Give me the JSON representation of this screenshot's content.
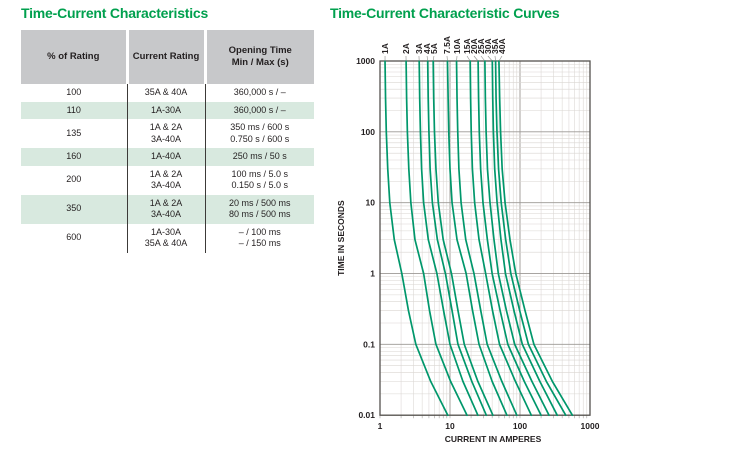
{
  "left_section": {
    "title": "Time-Current Characteristics",
    "table": {
      "headers": [
        {
          "lines": [
            "% of Rating"
          ]
        },
        {
          "lines": [
            "Current Rating"
          ]
        },
        {
          "lines": [
            "Opening Time",
            "Min / Max (s)"
          ]
        }
      ],
      "rows": [
        {
          "pct": "100",
          "rating_lines": [
            "35A & 40A"
          ],
          "time_lines": [
            "360,000 s / –"
          ],
          "highlight": false
        },
        {
          "pct": "110",
          "rating_lines": [
            "1A-30A"
          ],
          "time_lines": [
            "360,000 s / –"
          ],
          "highlight": true
        },
        {
          "pct": "135",
          "rating_lines": [
            "1A & 2A",
            "3A-40A"
          ],
          "time_lines": [
            "350 ms / 600 s",
            "0.750 s / 600 s"
          ],
          "highlight": false
        },
        {
          "pct": "160",
          "rating_lines": [
            "1A-40A"
          ],
          "time_lines": [
            "250 ms / 50 s"
          ],
          "highlight": true
        },
        {
          "pct": "200",
          "rating_lines": [
            "1A & 2A",
            "3A-40A"
          ],
          "time_lines": [
            "100 ms / 5.0 s",
            "0.150 s / 5.0 s"
          ],
          "highlight": false
        },
        {
          "pct": "350",
          "rating_lines": [
            "1A & 2A",
            "3A-40A"
          ],
          "time_lines": [
            "20 ms / 500 ms",
            "80 ms / 500 ms"
          ],
          "highlight": true
        },
        {
          "pct": "600",
          "rating_lines": [
            "1A-30A",
            "35A & 40A"
          ],
          "time_lines": [
            "– / 100 ms",
            "– / 150 ms"
          ],
          "highlight": false
        }
      ]
    }
  },
  "chart_data": {
    "type": "line",
    "title": "Time-Current Characteristic Curves",
    "xlabel": "CURRENT IN AMPERES",
    "ylabel": "TIME IN SECONDS",
    "xscale": "log",
    "yscale": "log",
    "xlim": [
      1,
      1000
    ],
    "ylim": [
      0.01,
      1000
    ],
    "grid": "log major and minor, both axes",
    "legend_position": "labels rotated above top axis",
    "x_ticks": [
      {
        "v": 1,
        "label": "1"
      },
      {
        "v": 10,
        "label": "10"
      },
      {
        "v": 100,
        "label": "100"
      },
      {
        "v": 1000,
        "label": "1000"
      }
    ],
    "y_ticks": [
      {
        "v": 1000,
        "label": "1000"
      },
      {
        "v": 100,
        "label": "100"
      },
      {
        "v": 10,
        "label": "10"
      },
      {
        "v": 1,
        "label": "1"
      },
      {
        "v": 0.1,
        "label": "0.1"
      },
      {
        "v": 0.01,
        "label": "0.01"
      }
    ],
    "colors": {
      "curve": "#00976b",
      "grid_minor": "#dad6d2",
      "grid_major": "#9b9894",
      "frame": "#55524e",
      "title_green": "#00a04e",
      "leader": "#8a8a86"
    },
    "series": [
      {
        "name": "1A",
        "label_at": 1.18,
        "points": [
          [
            1.18,
            1000
          ],
          [
            1.2,
            300
          ],
          [
            1.23,
            100
          ],
          [
            1.29,
            30
          ],
          [
            1.38,
            10
          ],
          [
            1.6,
            3
          ],
          [
            2.05,
            1
          ],
          [
            2.55,
            0.3
          ],
          [
            3.25,
            0.1
          ],
          [
            5.3,
            0.03
          ],
          [
            9.3,
            0.01
          ]
        ]
      },
      {
        "name": "2A",
        "label_at": 2.35,
        "points": [
          [
            2.36,
            1000
          ],
          [
            2.4,
            300
          ],
          [
            2.46,
            100
          ],
          [
            2.58,
            30
          ],
          [
            2.76,
            10
          ],
          [
            3.16,
            3
          ],
          [
            4.2,
            1
          ],
          [
            5.1,
            0.3
          ],
          [
            6.3,
            0.1
          ],
          [
            10.2,
            0.03
          ],
          [
            17.5,
            0.01
          ]
        ]
      },
      {
        "name": "3A",
        "label_at": 3.6,
        "points": [
          [
            3.63,
            1000
          ],
          [
            3.69,
            300
          ],
          [
            3.78,
            100
          ],
          [
            3.93,
            30
          ],
          [
            4.2,
            10
          ],
          [
            4.9,
            3
          ],
          [
            6.5,
            1
          ],
          [
            8.1,
            0.3
          ],
          [
            10.0,
            0.1
          ],
          [
            15.3,
            0.03
          ],
          [
            25,
            0.01
          ]
        ]
      },
      {
        "name": "4A",
        "label_at": 4.7,
        "points": [
          [
            4.8,
            1000
          ],
          [
            4.88,
            300
          ],
          [
            5.0,
            100
          ],
          [
            5.2,
            30
          ],
          [
            5.6,
            10
          ],
          [
            6.6,
            3
          ],
          [
            8.6,
            1
          ],
          [
            10.7,
            0.3
          ],
          [
            13.0,
            0.1
          ],
          [
            20.5,
            0.03
          ],
          [
            33,
            0.01
          ]
        ]
      },
      {
        "name": "5A",
        "label_at": 5.9,
        "points": [
          [
            5.75,
            1000
          ],
          [
            5.85,
            300
          ],
          [
            6.0,
            100
          ],
          [
            6.3,
            30
          ],
          [
            6.8,
            10
          ],
          [
            8.0,
            3
          ],
          [
            10.5,
            1
          ],
          [
            13.0,
            0.3
          ],
          [
            16.0,
            0.1
          ],
          [
            25.0,
            0.03
          ],
          [
            41,
            0.01
          ]
        ]
      },
      {
        "name": "7.5A",
        "label_at": 9.05,
        "points": [
          [
            9.2,
            1000
          ],
          [
            9.4,
            300
          ],
          [
            9.6,
            100
          ],
          [
            10.0,
            30
          ],
          [
            10.7,
            10
          ],
          [
            12.6,
            3
          ],
          [
            17.0,
            1
          ],
          [
            21.0,
            0.3
          ],
          [
            26.0,
            0.1
          ],
          [
            40.0,
            0.03
          ],
          [
            65,
            0.01
          ]
        ]
      },
      {
        "name": "10A",
        "label_at": 12.6,
        "points": [
          [
            12.4,
            1000
          ],
          [
            12.6,
            300
          ],
          [
            12.9,
            100
          ],
          [
            13.4,
            30
          ],
          [
            14.4,
            10
          ],
          [
            16.8,
            3
          ],
          [
            22.0,
            1
          ],
          [
            27.5,
            0.3
          ],
          [
            34.0,
            0.1
          ],
          [
            55.0,
            0.03
          ],
          [
            90,
            0.01
          ]
        ]
      },
      {
        "name": "15A",
        "label_at": 17.5,
        "points": [
          [
            19.4,
            1000
          ],
          [
            19.7,
            300
          ],
          [
            20.1,
            100
          ],
          [
            20.9,
            30
          ],
          [
            22.5,
            10
          ],
          [
            26.0,
            3
          ],
          [
            32.3,
            1
          ],
          [
            40.5,
            0.3
          ],
          [
            51.0,
            0.1
          ],
          [
            86.0,
            0.03
          ],
          [
            145,
            0.01
          ]
        ]
      },
      {
        "name": "20A",
        "label_at": 22.0,
        "points": [
          [
            25.2,
            1000
          ],
          [
            25.6,
            300
          ],
          [
            26.2,
            100
          ],
          [
            27.4,
            30
          ],
          [
            29.6,
            10
          ],
          [
            34.2,
            3
          ],
          [
            40.0,
            1
          ],
          [
            52.0,
            0.3
          ],
          [
            67.0,
            0.1
          ],
          [
            115.0,
            0.03
          ],
          [
            200,
            0.01
          ]
        ]
      },
      {
        "name": "25A",
        "label_at": 27.7,
        "points": [
          [
            31.5,
            1000
          ],
          [
            32.0,
            300
          ],
          [
            32.8,
            100
          ],
          [
            34.3,
            30
          ],
          [
            37.3,
            10
          ],
          [
            42.5,
            3
          ],
          [
            49.0,
            1
          ],
          [
            64.0,
            0.3
          ],
          [
            84.0,
            0.1
          ],
          [
            148.0,
            0.03
          ],
          [
            260,
            0.01
          ]
        ]
      },
      {
        "name": "30A",
        "label_at": 34.8,
        "points": [
          [
            40.2,
            1000
          ],
          [
            40.8,
            300
          ],
          [
            41.7,
            100
          ],
          [
            43.5,
            30
          ],
          [
            47.1,
            10
          ],
          [
            53.5,
            3
          ],
          [
            62.0,
            1
          ],
          [
            82.0,
            0.3
          ],
          [
            108.0,
            0.1
          ],
          [
            192.0,
            0.03
          ],
          [
            340,
            0.01
          ]
        ]
      },
      {
        "name": "35A",
        "label_at": 43.9,
        "points": [
          [
            44.8,
            1000
          ],
          [
            45.5,
            300
          ],
          [
            46.9,
            100
          ],
          [
            49.4,
            30
          ],
          [
            53.9,
            10
          ],
          [
            62.5,
            3
          ],
          [
            74.0,
            1
          ],
          [
            99.0,
            0.3
          ],
          [
            132.0,
            0.1
          ],
          [
            238.0,
            0.03
          ],
          [
            450,
            0.01
          ]
        ]
      },
      {
        "name": "40A",
        "label_at": 55.3,
        "points": [
          [
            50.0,
            1000
          ],
          [
            51.2,
            300
          ],
          [
            52.8,
            100
          ],
          [
            55.6,
            30
          ],
          [
            61.2,
            10
          ],
          [
            72.0,
            3
          ],
          [
            87.0,
            1
          ],
          [
            118.0,
            0.3
          ],
          [
            158.0,
            0.1
          ],
          [
            290.0,
            0.03
          ],
          [
            560,
            0.01
          ]
        ]
      }
    ]
  }
}
